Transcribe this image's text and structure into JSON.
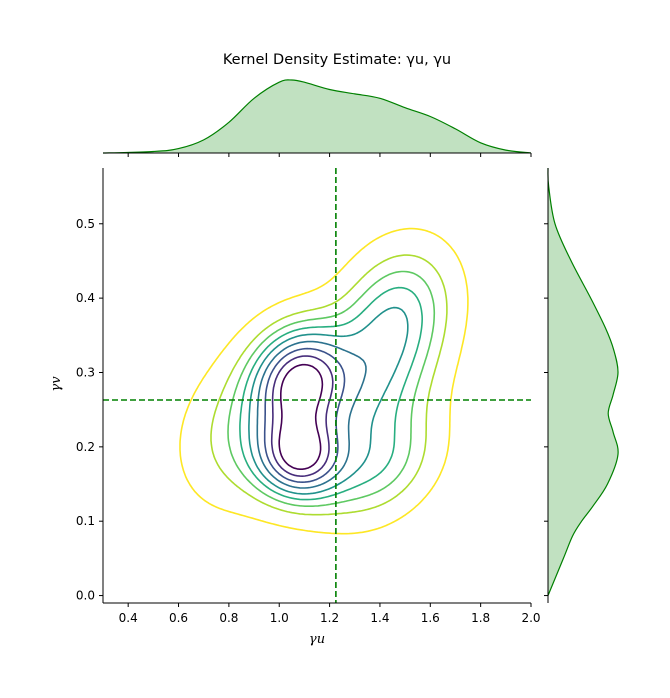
{
  "chart_data": {
    "type": "contour",
    "title": "Kernel Density Estimate: γu, γu",
    "xlabel": "γu",
    "ylabel": "γv",
    "xlim": [
      0.3,
      2.0
    ],
    "ylim": [
      -0.01,
      0.575
    ],
    "x_ticks": [
      "0.4",
      "0.6",
      "0.8",
      "1.0",
      "1.2",
      "1.4",
      "1.6",
      "1.8",
      "2.0"
    ],
    "y_ticks": [
      "0.0",
      "0.1",
      "0.2",
      "0.3",
      "0.4",
      "0.5"
    ],
    "grid": false,
    "reference_lines": {
      "x": 1.225,
      "y": 0.263,
      "color": "#008000",
      "style": "dashed"
    },
    "joint_density_peaks": [
      {
        "x": 1.08,
        "y": 0.29
      },
      {
        "x": 1.08,
        "y": 0.185
      }
    ],
    "contour_colors": [
      "#440154",
      "#472d7b",
      "#3b528b",
      "#2c728e",
      "#21918c",
      "#28ae80",
      "#5ec962",
      "#addc30",
      "#fde725"
    ],
    "marginal_x": {
      "fill": "#c1e1c1",
      "line": "#008000",
      "x": [
        0.3,
        0.5,
        0.6,
        0.7,
        0.8,
        0.9,
        1.0,
        1.05,
        1.1,
        1.2,
        1.3,
        1.4,
        1.5,
        1.6,
        1.7,
        1.8,
        1.9,
        2.0
      ],
      "density": [
        0.0,
        0.02,
        0.06,
        0.18,
        0.42,
        0.75,
        0.97,
        1.0,
        0.97,
        0.87,
        0.81,
        0.75,
        0.62,
        0.5,
        0.33,
        0.14,
        0.04,
        0.0
      ]
    },
    "marginal_y": {
      "fill": "#c1e1c1",
      "line": "#008000",
      "y": [
        0.0,
        0.05,
        0.08,
        0.1,
        0.12,
        0.15,
        0.19,
        0.22,
        0.245,
        0.27,
        0.3,
        0.33,
        0.36,
        0.4,
        0.45,
        0.5,
        0.55,
        0.575
      ],
      "density": [
        0.0,
        0.22,
        0.35,
        0.48,
        0.64,
        0.85,
        1.0,
        0.93,
        0.86,
        0.93,
        1.0,
        0.94,
        0.82,
        0.61,
        0.33,
        0.1,
        0.01,
        0.0
      ]
    }
  }
}
